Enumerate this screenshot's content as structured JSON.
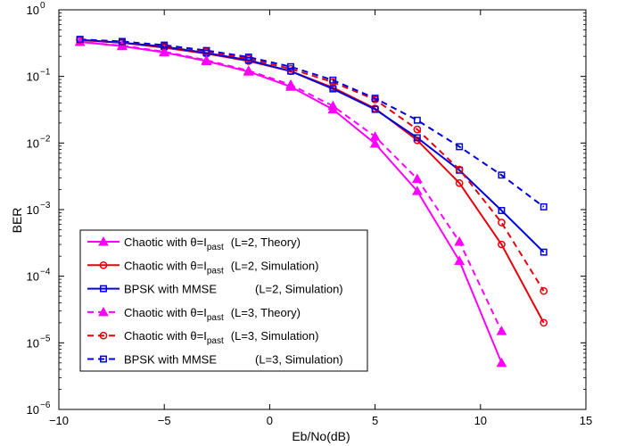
{
  "chart_data": {
    "type": "line",
    "title": "",
    "xlabel": "Eb/No(dB)",
    "ylabel": "BER",
    "xlim": [
      -10,
      15
    ],
    "ylim": [
      1e-06,
      1
    ],
    "yscale": "log",
    "xticks": [
      "−10",
      "−5",
      "0",
      "5",
      "10",
      "15"
    ],
    "yticks": [
      {
        "base": "10",
        "exp": "0"
      },
      {
        "base": "10",
        "exp": "−1"
      },
      {
        "base": "10",
        "exp": "−2"
      },
      {
        "base": "10",
        "exp": "−3"
      },
      {
        "base": "10",
        "exp": "−4"
      },
      {
        "base": "10",
        "exp": "−5"
      },
      {
        "base": "10",
        "exp": "−6"
      }
    ],
    "grid": false,
    "legend_position": "lower-left",
    "series": [
      {
        "legend_main": "Chaotic with θ=I",
        "legend_sub": "past",
        "legend_params": "(L=2, Theory)",
        "color": "#ff00ff",
        "dash": "solid",
        "marker": "triangle",
        "x": [
          -9,
          -7,
          -5,
          -3,
          -1,
          1,
          3,
          5,
          7,
          9,
          11
        ],
        "y": [
          0.33,
          0.285,
          0.23,
          0.17,
          0.118,
          0.07,
          0.032,
          0.0098,
          0.0019,
          0.00017,
          5e-06
        ]
      },
      {
        "legend_main": "Chaotic with θ=I",
        "legend_sub": "past",
        "legend_params": "(L=2, Simulation)",
        "color": "#e8000b",
        "dash": "solid",
        "marker": "circle",
        "x": [
          -9,
          -7,
          -5,
          -3,
          -1,
          1,
          3,
          5,
          7,
          9,
          11,
          13
        ],
        "y": [
          0.35,
          0.32,
          0.27,
          0.22,
          0.17,
          0.12,
          0.068,
          0.033,
          0.011,
          0.0025,
          0.0003,
          2e-05
        ]
      },
      {
        "legend_main": "BPSK with MMSE",
        "legend_sub": "",
        "legend_params": "(L=2, Simulation)",
        "color": "#0000e0",
        "dash": "solid",
        "marker": "square",
        "x": [
          -9,
          -7,
          -5,
          -3,
          -1,
          1,
          3,
          5,
          7,
          9,
          11,
          13
        ],
        "y": [
          0.355,
          0.32,
          0.28,
          0.225,
          0.175,
          0.12,
          0.065,
          0.032,
          0.012,
          0.0039,
          0.00097,
          0.00023
        ]
      },
      {
        "legend_main": "Chaotic with θ=I",
        "legend_sub": "past",
        "legend_params": "(L=3, Theory)",
        "color": "#ff00ff",
        "dash": "dashed",
        "marker": "triangle",
        "x": [
          -9,
          -7,
          -5,
          -3,
          -1,
          1,
          3,
          5,
          7,
          9,
          11
        ],
        "y": [
          0.33,
          0.29,
          0.235,
          0.175,
          0.122,
          0.075,
          0.036,
          0.0125,
          0.0029,
          0.00033,
          1.5e-05
        ]
      },
      {
        "legend_main": "Chaotic with θ=I",
        "legend_sub": "past",
        "legend_params": "(L=3, Simulation)",
        "color": "#e8000b",
        "dash": "dashed",
        "marker": "circle",
        "x": [
          -9,
          -7,
          -5,
          -3,
          -1,
          1,
          3,
          5,
          7,
          9,
          11,
          13
        ],
        "y": [
          0.355,
          0.33,
          0.29,
          0.235,
          0.185,
          0.13,
          0.082,
          0.045,
          0.016,
          0.004,
          0.00064,
          6e-05
        ]
      },
      {
        "legend_main": "BPSK with MMSE",
        "legend_sub": "",
        "legend_params": "(L=3, Simulation)",
        "color": "#0000e0",
        "dash": "dashed",
        "marker": "square",
        "x": [
          -9,
          -7,
          -5,
          -3,
          -1,
          1,
          3,
          5,
          7,
          9,
          11,
          13
        ],
        "y": [
          0.36,
          0.335,
          0.295,
          0.245,
          0.195,
          0.14,
          0.088,
          0.047,
          0.022,
          0.0088,
          0.0033,
          0.0011
        ]
      }
    ]
  }
}
